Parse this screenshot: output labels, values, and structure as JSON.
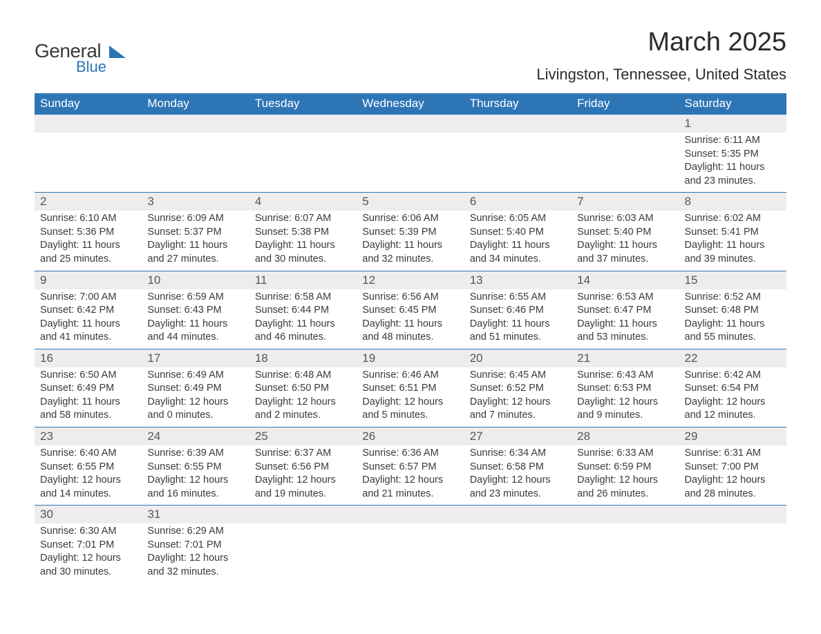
{
  "brand": {
    "line1": "General",
    "line2": "Blue"
  },
  "title": "March 2025",
  "location": "Livingston, Tennessee, United States",
  "colors": {
    "header_bg": "#2e75b6",
    "header_text": "#ffffff",
    "daynum_bg": "#ededed",
    "border": "#2e75b6",
    "body_text": "#3a3a3a",
    "page_bg": "#ffffff"
  },
  "weekdays": [
    "Sunday",
    "Monday",
    "Tuesday",
    "Wednesday",
    "Thursday",
    "Friday",
    "Saturday"
  ],
  "first_weekday_index": 6,
  "days": [
    {
      "n": 1,
      "sunrise": "6:11 AM",
      "sunset": "5:35 PM",
      "daylight": "11 hours and 23 minutes."
    },
    {
      "n": 2,
      "sunrise": "6:10 AM",
      "sunset": "5:36 PM",
      "daylight": "11 hours and 25 minutes."
    },
    {
      "n": 3,
      "sunrise": "6:09 AM",
      "sunset": "5:37 PM",
      "daylight": "11 hours and 27 minutes."
    },
    {
      "n": 4,
      "sunrise": "6:07 AM",
      "sunset": "5:38 PM",
      "daylight": "11 hours and 30 minutes."
    },
    {
      "n": 5,
      "sunrise": "6:06 AM",
      "sunset": "5:39 PM",
      "daylight": "11 hours and 32 minutes."
    },
    {
      "n": 6,
      "sunrise": "6:05 AM",
      "sunset": "5:40 PM",
      "daylight": "11 hours and 34 minutes."
    },
    {
      "n": 7,
      "sunrise": "6:03 AM",
      "sunset": "5:40 PM",
      "daylight": "11 hours and 37 minutes."
    },
    {
      "n": 8,
      "sunrise": "6:02 AM",
      "sunset": "5:41 PM",
      "daylight": "11 hours and 39 minutes."
    },
    {
      "n": 9,
      "sunrise": "7:00 AM",
      "sunset": "6:42 PM",
      "daylight": "11 hours and 41 minutes."
    },
    {
      "n": 10,
      "sunrise": "6:59 AM",
      "sunset": "6:43 PM",
      "daylight": "11 hours and 44 minutes."
    },
    {
      "n": 11,
      "sunrise": "6:58 AM",
      "sunset": "6:44 PM",
      "daylight": "11 hours and 46 minutes."
    },
    {
      "n": 12,
      "sunrise": "6:56 AM",
      "sunset": "6:45 PM",
      "daylight": "11 hours and 48 minutes."
    },
    {
      "n": 13,
      "sunrise": "6:55 AM",
      "sunset": "6:46 PM",
      "daylight": "11 hours and 51 minutes."
    },
    {
      "n": 14,
      "sunrise": "6:53 AM",
      "sunset": "6:47 PM",
      "daylight": "11 hours and 53 minutes."
    },
    {
      "n": 15,
      "sunrise": "6:52 AM",
      "sunset": "6:48 PM",
      "daylight": "11 hours and 55 minutes."
    },
    {
      "n": 16,
      "sunrise": "6:50 AM",
      "sunset": "6:49 PM",
      "daylight": "11 hours and 58 minutes."
    },
    {
      "n": 17,
      "sunrise": "6:49 AM",
      "sunset": "6:49 PM",
      "daylight": "12 hours and 0 minutes."
    },
    {
      "n": 18,
      "sunrise": "6:48 AM",
      "sunset": "6:50 PM",
      "daylight": "12 hours and 2 minutes."
    },
    {
      "n": 19,
      "sunrise": "6:46 AM",
      "sunset": "6:51 PM",
      "daylight": "12 hours and 5 minutes."
    },
    {
      "n": 20,
      "sunrise": "6:45 AM",
      "sunset": "6:52 PM",
      "daylight": "12 hours and 7 minutes."
    },
    {
      "n": 21,
      "sunrise": "6:43 AM",
      "sunset": "6:53 PM",
      "daylight": "12 hours and 9 minutes."
    },
    {
      "n": 22,
      "sunrise": "6:42 AM",
      "sunset": "6:54 PM",
      "daylight": "12 hours and 12 minutes."
    },
    {
      "n": 23,
      "sunrise": "6:40 AM",
      "sunset": "6:55 PM",
      "daylight": "12 hours and 14 minutes."
    },
    {
      "n": 24,
      "sunrise": "6:39 AM",
      "sunset": "6:55 PM",
      "daylight": "12 hours and 16 minutes."
    },
    {
      "n": 25,
      "sunrise": "6:37 AM",
      "sunset": "6:56 PM",
      "daylight": "12 hours and 19 minutes."
    },
    {
      "n": 26,
      "sunrise": "6:36 AM",
      "sunset": "6:57 PM",
      "daylight": "12 hours and 21 minutes."
    },
    {
      "n": 27,
      "sunrise": "6:34 AM",
      "sunset": "6:58 PM",
      "daylight": "12 hours and 23 minutes."
    },
    {
      "n": 28,
      "sunrise": "6:33 AM",
      "sunset": "6:59 PM",
      "daylight": "12 hours and 26 minutes."
    },
    {
      "n": 29,
      "sunrise": "6:31 AM",
      "sunset": "7:00 PM",
      "daylight": "12 hours and 28 minutes."
    },
    {
      "n": 30,
      "sunrise": "6:30 AM",
      "sunset": "7:01 PM",
      "daylight": "12 hours and 30 minutes."
    },
    {
      "n": 31,
      "sunrise": "6:29 AM",
      "sunset": "7:01 PM",
      "daylight": "12 hours and 32 minutes."
    }
  ],
  "labels": {
    "sunrise": "Sunrise:",
    "sunset": "Sunset:",
    "daylight": "Daylight:"
  }
}
